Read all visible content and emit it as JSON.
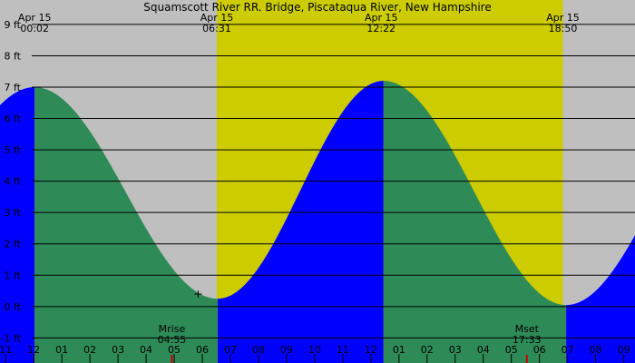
{
  "chart_data": {
    "type": "area",
    "title": "Squamscott River RR. Bridge, Piscataqua River, New Hampshire",
    "xlabel": "",
    "ylabel": "",
    "x_unit": "hours",
    "xlim": [
      -1.2,
      21.4
    ],
    "ylim": [
      -1.8,
      9.2
    ],
    "y_ticks": [
      {
        "value": 9,
        "label": "9 ft"
      },
      {
        "value": 8,
        "label": "8 ft"
      },
      {
        "value": 7,
        "label": "7 ft"
      },
      {
        "value": 6,
        "label": "6 ft"
      },
      {
        "value": 5,
        "label": "5 ft"
      },
      {
        "value": 4,
        "label": "4 ft"
      },
      {
        "value": 3,
        "label": "3 ft"
      },
      {
        "value": 2,
        "label": "2 ft"
      },
      {
        "value": 1,
        "label": "1 ft"
      },
      {
        "value": 0,
        "label": "0 ft"
      },
      {
        "value": -1,
        "label": "-1 ft"
      }
    ],
    "x_ticks": [
      {
        "value": -1,
        "label": "11"
      },
      {
        "value": 0,
        "label": "12"
      },
      {
        "value": 1,
        "label": "01"
      },
      {
        "value": 2,
        "label": "02"
      },
      {
        "value": 3,
        "label": "03"
      },
      {
        "value": 4,
        "label": "04"
      },
      {
        "value": 5,
        "label": "05"
      },
      {
        "value": 6,
        "label": "06"
      },
      {
        "value": 7,
        "label": "07"
      },
      {
        "value": 8,
        "label": "08"
      },
      {
        "value": 9,
        "label": "09"
      },
      {
        "value": 10,
        "label": "10"
      },
      {
        "value": 11,
        "label": "11"
      },
      {
        "value": 12,
        "label": "12"
      },
      {
        "value": 13,
        "label": "01"
      },
      {
        "value": 14,
        "label": "02"
      },
      {
        "value": 15,
        "label": "03"
      },
      {
        "value": 16,
        "label": "04"
      },
      {
        "value": 17,
        "label": "05"
      },
      {
        "value": 18,
        "label": "06"
      },
      {
        "value": 19,
        "label": "07"
      },
      {
        "value": 20,
        "label": "08"
      },
      {
        "value": 21,
        "label": "09"
      }
    ],
    "daylight": {
      "start": 6.517,
      "end": 18.833,
      "color": "#cccc00"
    },
    "night_color": "#bfbfbf",
    "extremes": [
      {
        "x": 0.033,
        "y": 7.0,
        "type": "high"
      },
      {
        "x": 6.55,
        "y": 0.25,
        "type": "low"
      },
      {
        "x": 12.45,
        "y": 7.2,
        "type": "high"
      },
      {
        "x": 18.95,
        "y": 0.05,
        "type": "low"
      }
    ],
    "tide_segments": [
      {
        "start": 0.033,
        "end": 6.55,
        "color": "#2e8b57"
      },
      {
        "start": 6.55,
        "end": 12.45,
        "color": "#0000ff"
      },
      {
        "start": 12.45,
        "end": 18.95,
        "color": "#2e8b57"
      },
      {
        "start": 18.95,
        "end": 21.4,
        "color": "#0000ff"
      }
    ],
    "lead_color": "#0000ff",
    "top_annotations": [
      {
        "x": 0.033,
        "date": "Apr 15",
        "time": "00:02"
      },
      {
        "x": 6.517,
        "date": "Apr 15",
        "time": "06:31"
      },
      {
        "x": 12.367,
        "date": "Apr 15",
        "time": "12:22"
      },
      {
        "x": 18.833,
        "date": "Apr 15",
        "time": "18:50"
      }
    ],
    "moon_events": [
      {
        "x": 4.917,
        "label": "Mrise",
        "time": "04:55"
      },
      {
        "x": 17.55,
        "label": "Mset",
        "time": "17:33"
      }
    ],
    "marker": {
      "x": 5.85,
      "y": 0.4,
      "symbol": "+"
    }
  }
}
